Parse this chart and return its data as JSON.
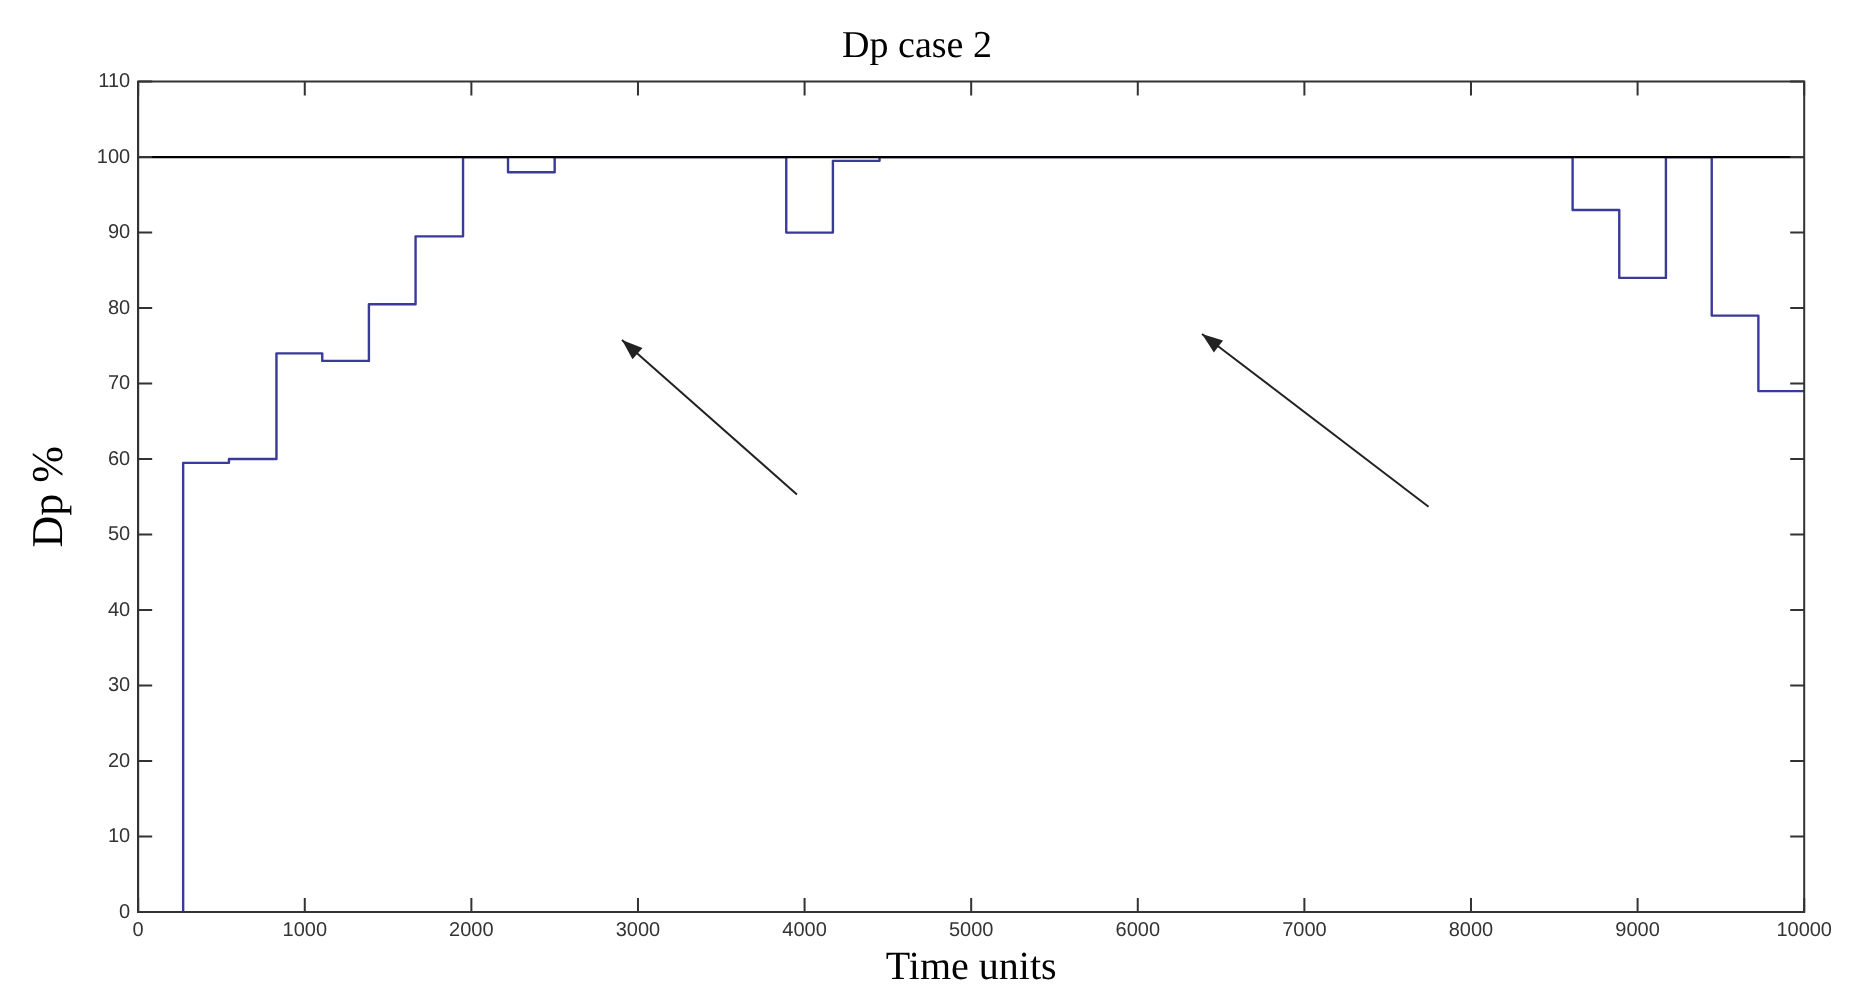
{
  "chart_data": {
    "type": "step",
    "title": "Dp case 2",
    "xlabel": "Time units",
    "ylabel": "Dp %",
    "x": [
      270,
      270,
      545,
      830,
      1105,
      1385,
      1665,
      1950,
      2220,
      2500,
      3890,
      4170,
      4450,
      8610,
      8890,
      9170,
      9445,
      9725,
      10000
    ],
    "series": [
      {
        "color": "#3a3a9a",
        "values": [
          0,
          59.5,
          60,
          74,
          73,
          80.5,
          89.5,
          100,
          98,
          100,
          90,
          99.5,
          100,
          93,
          84,
          100,
          79,
          69,
          69
        ]
      }
    ],
    "xlim": [
      0,
      10000
    ],
    "xticks": [
      0,
      1000,
      2000,
      3000,
      4000,
      5000,
      6000,
      7000,
      8000,
      9000,
      10000
    ],
    "ylim": [
      0,
      110
    ],
    "yticks": [
      0,
      10,
      20,
      30,
      40,
      50,
      60,
      70,
      80,
      90,
      100,
      110
    ],
    "ref_lines": [
      {
        "axis": "y",
        "value": 100,
        "color": "#000000"
      }
    ],
    "grid": false,
    "legend": false
  }
}
